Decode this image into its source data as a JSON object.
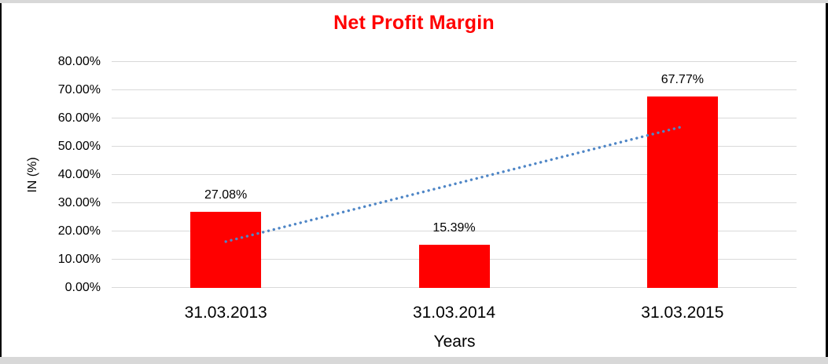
{
  "chart": {
    "title": "Net Profit Margin",
    "xlabel": "Years",
    "ylabel": "IN (%)"
  },
  "chart_data": {
    "type": "bar",
    "title": "Net Profit Margin",
    "xlabel": "Years",
    "ylabel": "IN (%)",
    "categories": [
      "31.03.2013",
      "31.03.2014",
      "31.03.2015"
    ],
    "values": [
      27.08,
      15.39,
      67.77
    ],
    "data_labels": [
      "27.08%",
      "15.39%",
      "67.77%"
    ],
    "ylim": [
      0,
      80
    ],
    "yticks": [
      {
        "value": 0,
        "label": "0.00%"
      },
      {
        "value": 10,
        "label": "10.00%"
      },
      {
        "value": 20,
        "label": "20.00%"
      },
      {
        "value": 30,
        "label": "30.00%"
      },
      {
        "value": 40,
        "label": "40.00%"
      },
      {
        "value": 50,
        "label": "50.00%"
      },
      {
        "value": 60,
        "label": "60.00%"
      },
      {
        "value": 70,
        "label": "70.00%"
      },
      {
        "value": 80,
        "label": "80.00%"
      }
    ],
    "grid": true,
    "legend": false,
    "bar_color": "#ff0000",
    "trendline": {
      "type": "linear",
      "style": "dotted",
      "color": "#4f86c6",
      "start_value": 16.4,
      "end_value": 57.1
    },
    "colors": {
      "title": "#ff0000",
      "gridline": "#d9d9d9",
      "text": "#000000",
      "frame_border": "#000000",
      "frame_strip": "#d8d8d8"
    }
  }
}
